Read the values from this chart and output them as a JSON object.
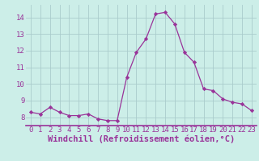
{
  "x": [
    0,
    1,
    2,
    3,
    4,
    5,
    6,
    7,
    8,
    9,
    10,
    11,
    12,
    13,
    14,
    15,
    16,
    17,
    18,
    19,
    20,
    21,
    22,
    23
  ],
  "y": [
    8.3,
    8.2,
    8.6,
    8.3,
    8.1,
    8.1,
    8.2,
    7.9,
    7.8,
    7.8,
    10.4,
    11.9,
    12.7,
    14.2,
    14.3,
    13.6,
    11.9,
    11.3,
    9.7,
    9.6,
    9.1,
    8.9,
    8.8,
    8.4
  ],
  "line_color": "#993399",
  "marker": "D",
  "marker_size": 2.2,
  "background_color": "#cceee8",
  "grid_color": "#aacccc",
  "xlabel": "Windchill (Refroidissement éolien,°C)",
  "ylim": [
    7.5,
    14.75
  ],
  "xlim": [
    -0.5,
    23.5
  ],
  "xticks": [
    0,
    1,
    2,
    3,
    4,
    5,
    6,
    7,
    8,
    9,
    10,
    11,
    12,
    13,
    14,
    15,
    16,
    17,
    18,
    19,
    20,
    21,
    22,
    23
  ],
  "yticks": [
    8,
    9,
    10,
    11,
    12,
    13,
    14
  ],
  "tick_label_color": "#993399",
  "tick_label_fontsize": 6.5,
  "xlabel_fontsize": 7.5,
  "xlabel_color": "#993399",
  "xlabel_fontfamily": "monospace",
  "spine_color": "#993399",
  "bottom_line_color": "#993399"
}
